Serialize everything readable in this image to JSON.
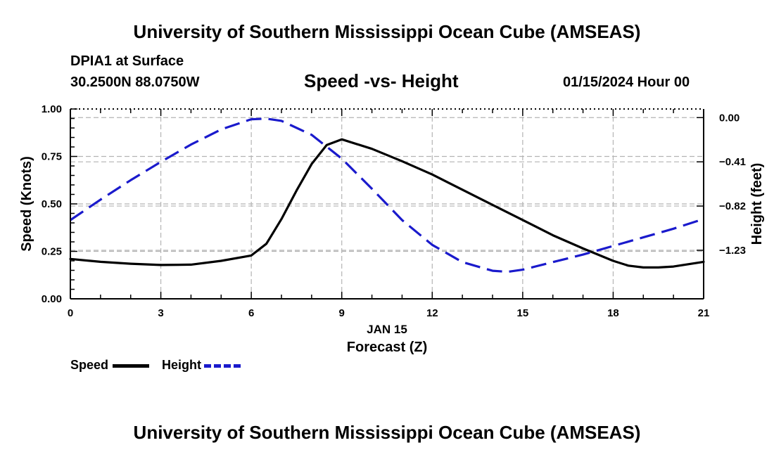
{
  "header": {
    "title_top": "University of Southern Mississippi Ocean Cube (AMSEAS)",
    "station": "DPIA1 at Surface",
    "coordinates": "30.2500N  88.0750W",
    "subtitle": "Speed -vs- Height",
    "datetime": "01/15/2024 Hour 00"
  },
  "footer": {
    "title_bottom": "University of Southern Mississippi Ocean Cube (AMSEAS)"
  },
  "legend": {
    "speed_label": "Speed",
    "height_label": "Height"
  },
  "colors": {
    "speed": "#000000",
    "height": "#1a1acc",
    "grid": "#b4b4b4"
  },
  "chart_data": {
    "type": "line",
    "title": "Speed -vs- Height",
    "xlabel": "Forecast (Z)",
    "xlabel_date": "JAN 15",
    "ylabel_left": "Speed (Knots)",
    "ylabel_right": "Height (feet)",
    "xlim": [
      0,
      21
    ],
    "ylim_left": [
      0,
      1.0
    ],
    "ylim_right": [
      -1.68,
      0.08
    ],
    "x_ticks": [
      0,
      3,
      6,
      9,
      12,
      15,
      18,
      21
    ],
    "x_tick_labels": [
      "0",
      "3",
      "6",
      "9",
      "12",
      "15",
      "18",
      "21"
    ],
    "y_left_ticks": [
      0.0,
      0.25,
      0.5,
      0.75,
      1.0
    ],
    "y_left_tick_labels": [
      "0.00",
      "0.25",
      "0.50",
      "0.75",
      "1.00"
    ],
    "y_right_ticks": [
      0.0,
      -0.41,
      -0.82,
      -1.23
    ],
    "y_right_tick_labels": [
      "0.00",
      "−0.41",
      "−0.82",
      "−1.23"
    ],
    "grid": true,
    "series": [
      {
        "name": "Speed",
        "axis": "left",
        "style": "solid",
        "x": [
          0,
          1,
          2,
          3,
          4,
          5,
          6,
          6.5,
          7,
          7.5,
          8,
          8.5,
          9,
          10,
          11,
          12,
          13,
          14,
          15,
          16,
          17,
          18,
          18.5,
          19,
          19.5,
          20,
          21
        ],
        "y": [
          0.21,
          0.195,
          0.185,
          0.178,
          0.18,
          0.2,
          0.228,
          0.29,
          0.42,
          0.57,
          0.71,
          0.81,
          0.84,
          0.79,
          0.725,
          0.655,
          0.575,
          0.495,
          0.415,
          0.335,
          0.265,
          0.2,
          0.175,
          0.165,
          0.165,
          0.17,
          0.195
        ]
      },
      {
        "name": "Height",
        "axis": "right",
        "style": "dashed",
        "x": [
          0,
          1,
          2,
          3,
          4,
          5,
          6,
          6.5,
          7,
          8,
          9,
          10,
          11,
          12,
          13,
          14,
          14.5,
          15,
          16,
          17,
          18,
          19,
          20,
          21
        ],
        "y": [
          -0.95,
          -0.76,
          -0.58,
          -0.41,
          -0.25,
          -0.11,
          -0.015,
          -0.01,
          -0.03,
          -0.16,
          -0.38,
          -0.66,
          -0.95,
          -1.18,
          -1.34,
          -1.42,
          -1.43,
          -1.41,
          -1.34,
          -1.27,
          -1.19,
          -1.11,
          -1.03,
          -0.94
        ]
      }
    ]
  }
}
